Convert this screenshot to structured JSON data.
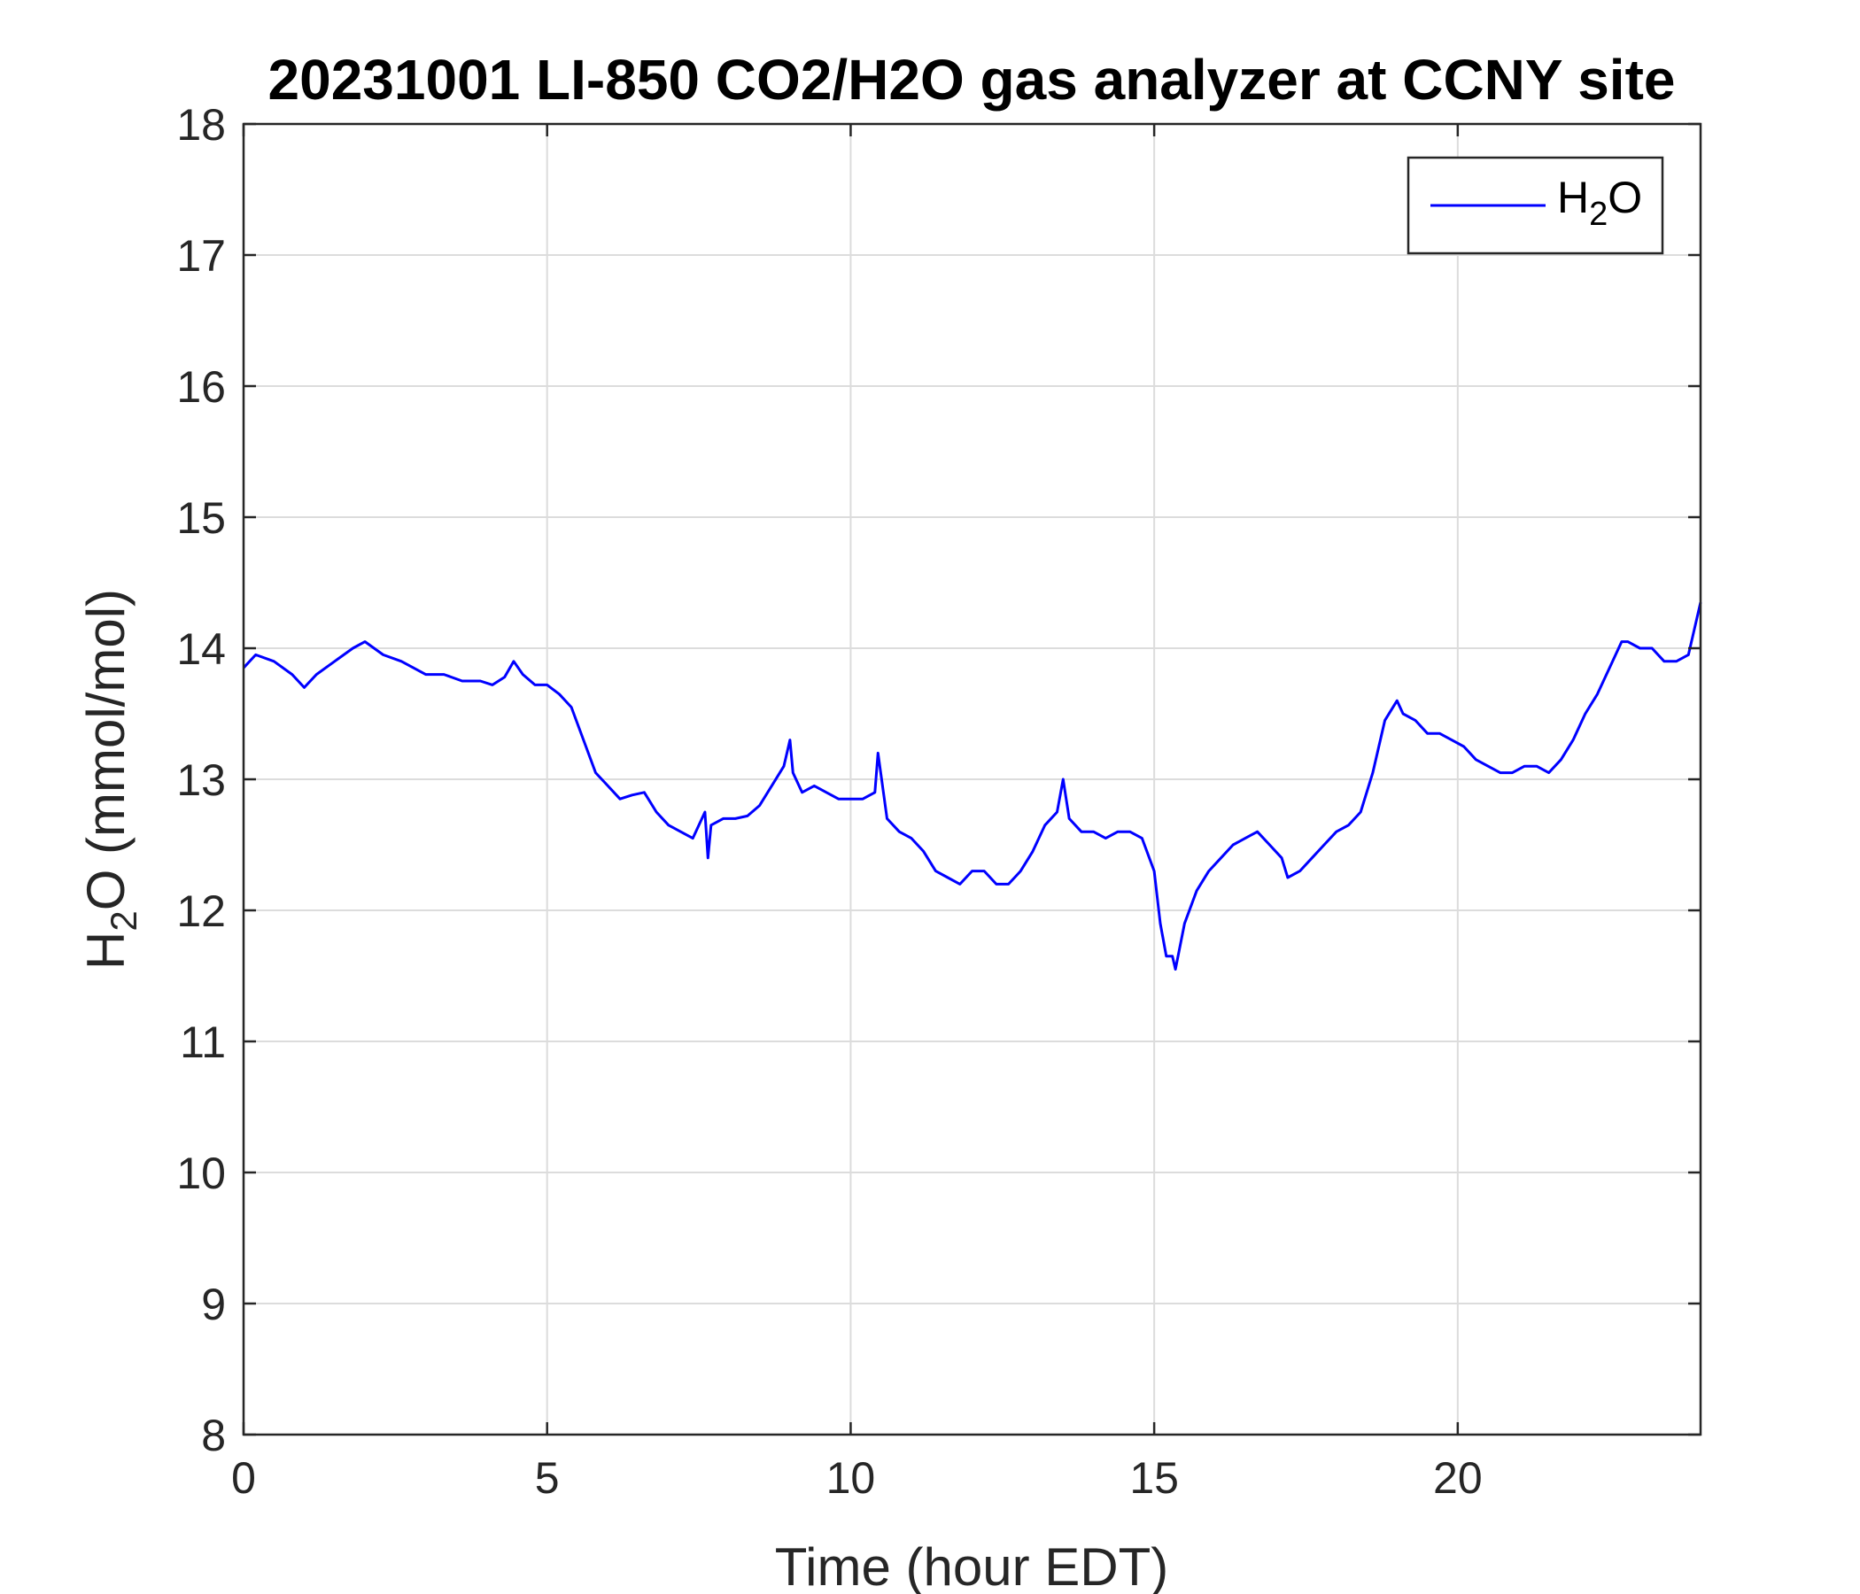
{
  "chart_data": {
    "type": "line",
    "title": "20231001 LI-850 CO2/H2O gas analyzer at CCNY site",
    "xlabel_text": "Time (hour EDT)",
    "ylabel": {
      "base": "H",
      "sub": "2",
      "rest": "O (mmol/mol)"
    },
    "xlim": [
      0,
      24
    ],
    "ylim": [
      8,
      18
    ],
    "xticks": [
      0,
      5,
      10,
      15,
      20
    ],
    "yticks": [
      8,
      9,
      10,
      11,
      12,
      13,
      14,
      15,
      16,
      17,
      18
    ],
    "grid": true,
    "legend_position": "top-right",
    "line_color": "#0000FF",
    "series": [
      {
        "legend": {
          "base": "H",
          "sub": "2",
          "rest": "O"
        },
        "x": [
          0,
          0.2,
          0.5,
          0.8,
          1.0,
          1.2,
          1.5,
          1.8,
          2.0,
          2.3,
          2.6,
          2.8,
          3.0,
          3.3,
          3.6,
          3.9,
          4.1,
          4.3,
          4.45,
          4.6,
          4.8,
          5.0,
          5.2,
          5.4,
          5.6,
          5.8,
          6.0,
          6.2,
          6.4,
          6.6,
          6.8,
          7.0,
          7.2,
          7.4,
          7.6,
          7.65,
          7.7,
          7.9,
          8.1,
          8.3,
          8.5,
          8.7,
          8.9,
          9.0,
          9.05,
          9.2,
          9.4,
          9.6,
          9.8,
          10.0,
          10.2,
          10.4,
          10.45,
          10.6,
          10.8,
          11.0,
          11.2,
          11.4,
          11.6,
          11.8,
          12.0,
          12.2,
          12.4,
          12.6,
          12.8,
          13.0,
          13.2,
          13.4,
          13.5,
          13.6,
          13.8,
          14.0,
          14.2,
          14.4,
          14.6,
          14.8,
          15.0,
          15.1,
          15.2,
          15.3,
          15.35,
          15.5,
          15.7,
          15.9,
          16.1,
          16.3,
          16.5,
          16.7,
          16.9,
          17.1,
          17.2,
          17.4,
          17.6,
          17.8,
          18.0,
          18.2,
          18.4,
          18.6,
          18.8,
          19.0,
          19.1,
          19.3,
          19.5,
          19.7,
          19.9,
          20.1,
          20.3,
          20.5,
          20.7,
          20.9,
          21.1,
          21.3,
          21.5,
          21.7,
          21.9,
          22.1,
          22.3,
          22.5,
          22.7,
          22.8,
          23.0,
          23.2,
          23.4,
          23.6,
          23.8,
          24.0
        ],
        "y": [
          13.85,
          13.95,
          13.9,
          13.8,
          13.7,
          13.8,
          13.9,
          14.0,
          14.05,
          13.95,
          13.9,
          13.85,
          13.8,
          13.8,
          13.75,
          13.75,
          13.72,
          13.78,
          13.9,
          13.8,
          13.72,
          13.72,
          13.65,
          13.55,
          13.3,
          13.05,
          12.95,
          12.85,
          12.88,
          12.9,
          12.75,
          12.65,
          12.6,
          12.55,
          12.75,
          12.4,
          12.65,
          12.7,
          12.7,
          12.72,
          12.8,
          12.95,
          13.1,
          13.3,
          13.05,
          12.9,
          12.95,
          12.9,
          12.85,
          12.85,
          12.85,
          12.9,
          13.2,
          12.7,
          12.6,
          12.55,
          12.45,
          12.3,
          12.25,
          12.2,
          12.3,
          12.3,
          12.2,
          12.2,
          12.3,
          12.45,
          12.65,
          12.75,
          13.0,
          12.7,
          12.6,
          12.6,
          12.55,
          12.6,
          12.6,
          12.55,
          12.3,
          11.9,
          11.65,
          11.65,
          11.55,
          11.9,
          12.15,
          12.3,
          12.4,
          12.5,
          12.55,
          12.6,
          12.5,
          12.4,
          12.25,
          12.3,
          12.4,
          12.5,
          12.6,
          12.65,
          12.75,
          13.05,
          13.45,
          13.6,
          13.5,
          13.45,
          13.35,
          13.35,
          13.3,
          13.25,
          13.15,
          13.1,
          13.05,
          13.05,
          13.1,
          13.1,
          13.05,
          13.15,
          13.3,
          13.5,
          13.65,
          13.85,
          14.05,
          14.05,
          14.0,
          14.0,
          13.9,
          13.9,
          13.95,
          14.35
        ]
      }
    ]
  }
}
